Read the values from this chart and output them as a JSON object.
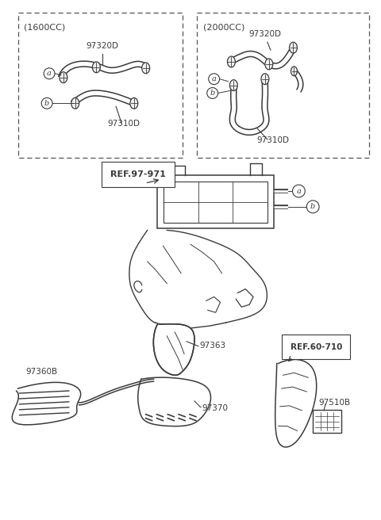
{
  "bg_color": "#ffffff",
  "lc": "#3a3a3a",
  "box1_header": "(1600CC)",
  "box2_header": "(2000CC)",
  "lbl_97320D": "97320D",
  "lbl_97310D": "97310D",
  "lbl_97360B": "97360B",
  "lbl_97363": "97363",
  "lbl_97370": "97370",
  "lbl_97510B": "97510B",
  "lbl_ref971": "REF.97-971",
  "lbl_ref710": "REF.60-710",
  "lbl_a": "a",
  "lbl_b": "b",
  "fig_w": 4.8,
  "fig_h": 6.56,
  "dpi": 100
}
